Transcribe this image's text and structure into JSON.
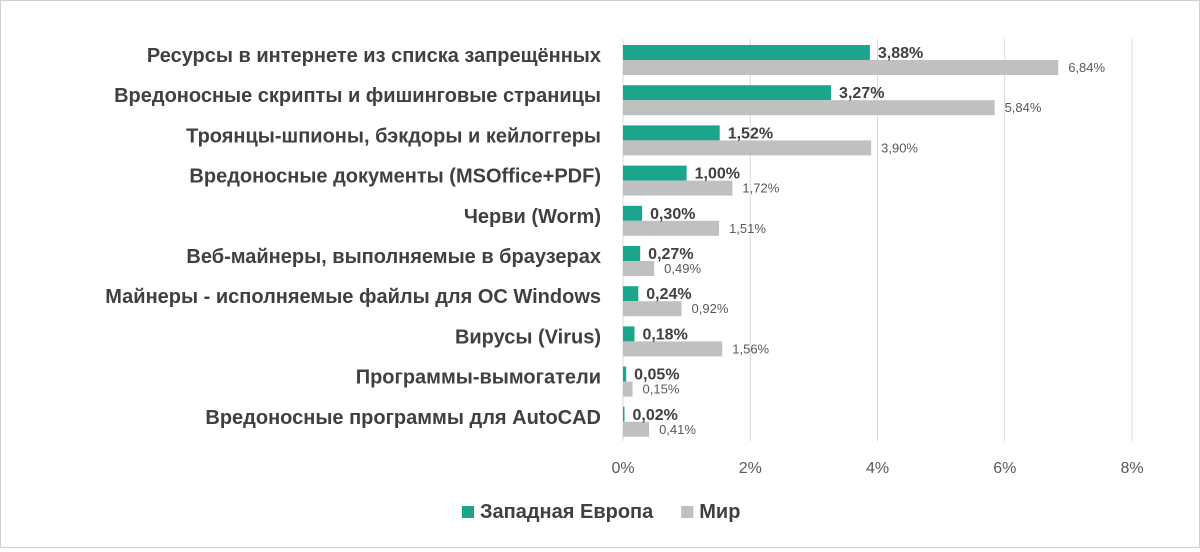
{
  "chart_data": {
    "type": "bar",
    "orientation": "horizontal",
    "categories": [
      "Ресурсы в интернете из списка запрещённых",
      "Вредоносные скрипты и фишинговые страницы",
      "Троянцы-шпионы, бэкдоры и кейлоггеры",
      "Вредоносные документы (MSOffice+PDF)",
      "Черви (Worm)",
      "Веб-майнеры, выполняемые в браузерах",
      "Майнеры - исполняемые файлы для ОС Windows",
      "Вирусы (Virus)",
      "Программы-вымогатели",
      "Вредоносные программы для AutoCAD"
    ],
    "series": [
      {
        "name": "Западная Европа",
        "color": "#1aa58c",
        "values": [
          3.88,
          3.27,
          1.52,
          1.0,
          0.3,
          0.27,
          0.24,
          0.18,
          0.05,
          0.02
        ],
        "labels": [
          "3,88%",
          "3,27%",
          "1,52%",
          "1,00%",
          "0,30%",
          "0,27%",
          "0,24%",
          "0,18%",
          "0,05%",
          "0,02%"
        ]
      },
      {
        "name": "Мир",
        "color": "#c0c0c0",
        "values": [
          6.84,
          5.84,
          3.9,
          1.72,
          1.51,
          0.49,
          0.92,
          1.56,
          0.15,
          0.41
        ],
        "labels": [
          "6,84%",
          "5,84%",
          "3,90%",
          "1,72%",
          "1,51%",
          "0,49%",
          "0,92%",
          "1,56%",
          "0,15%",
          "0,41%"
        ]
      }
    ],
    "xlim": [
      0,
      8
    ],
    "xticks": [
      0,
      2,
      4,
      6,
      8
    ],
    "xtick_labels": [
      "0%",
      "2%",
      "4%",
      "6%",
      "8%"
    ],
    "grid": true,
    "legend_position": "bottom-center",
    "title": "",
    "xlabel": "",
    "ylabel": ""
  }
}
